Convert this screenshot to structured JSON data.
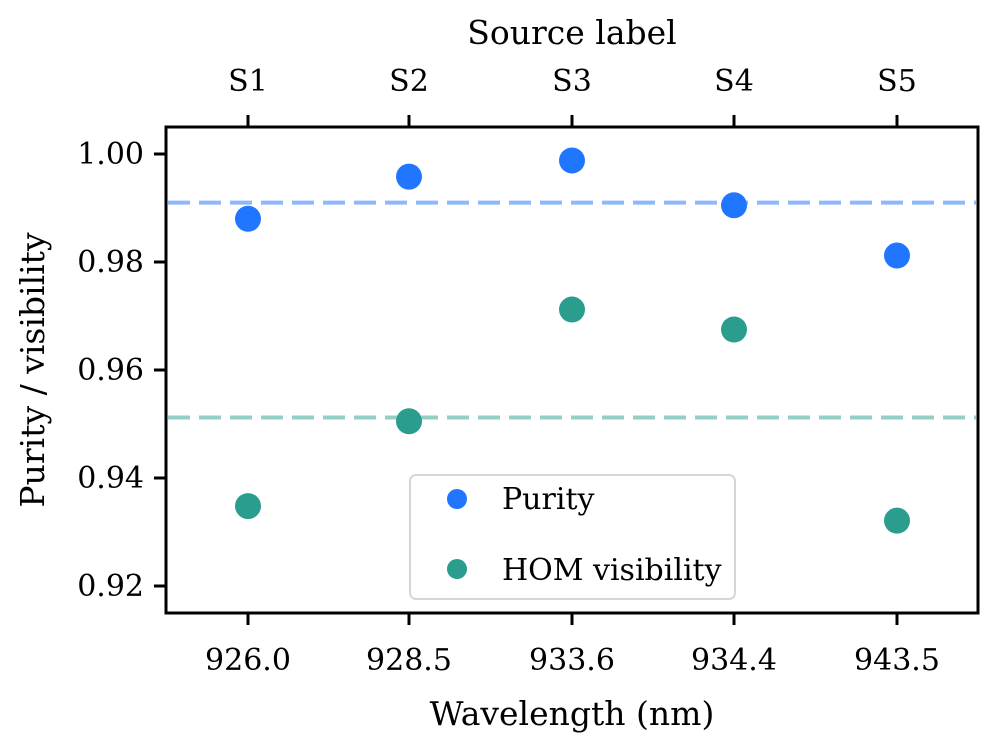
{
  "chart_data": {
    "type": "scatter",
    "xlabel": "Wavelength (nm)",
    "top_xlabel": "Source label",
    "ylabel": "Purity / visibility",
    "categories": [
      "926.0",
      "928.5",
      "933.6",
      "934.4",
      "943.5"
    ],
    "top_categories": [
      "S1",
      "S2",
      "S3",
      "S4",
      "S5"
    ],
    "ylim": [
      0.915,
      1.005
    ],
    "yticks": [
      0.92,
      0.94,
      0.96,
      0.98,
      1.0
    ],
    "ytick_labels": [
      "0.92",
      "0.94",
      "0.96",
      "0.98",
      "1.00"
    ],
    "series": [
      {
        "name": "Purity",
        "values": [
          0.988,
          0.9958,
          0.9988,
          0.9905,
          0.9812
        ],
        "color": "#2176ff",
        "mean_line": 0.991,
        "mean_line_color": "#8fb8fb"
      },
      {
        "name": "HOM visibility",
        "values": [
          0.9348,
          0.9505,
          0.9712,
          0.9675,
          0.9321
        ],
        "color": "#2a9d8f",
        "mean_line": 0.9512,
        "mean_line_color": "#94cfc7"
      }
    ],
    "grid": false,
    "legend_position": "lower-center"
  }
}
